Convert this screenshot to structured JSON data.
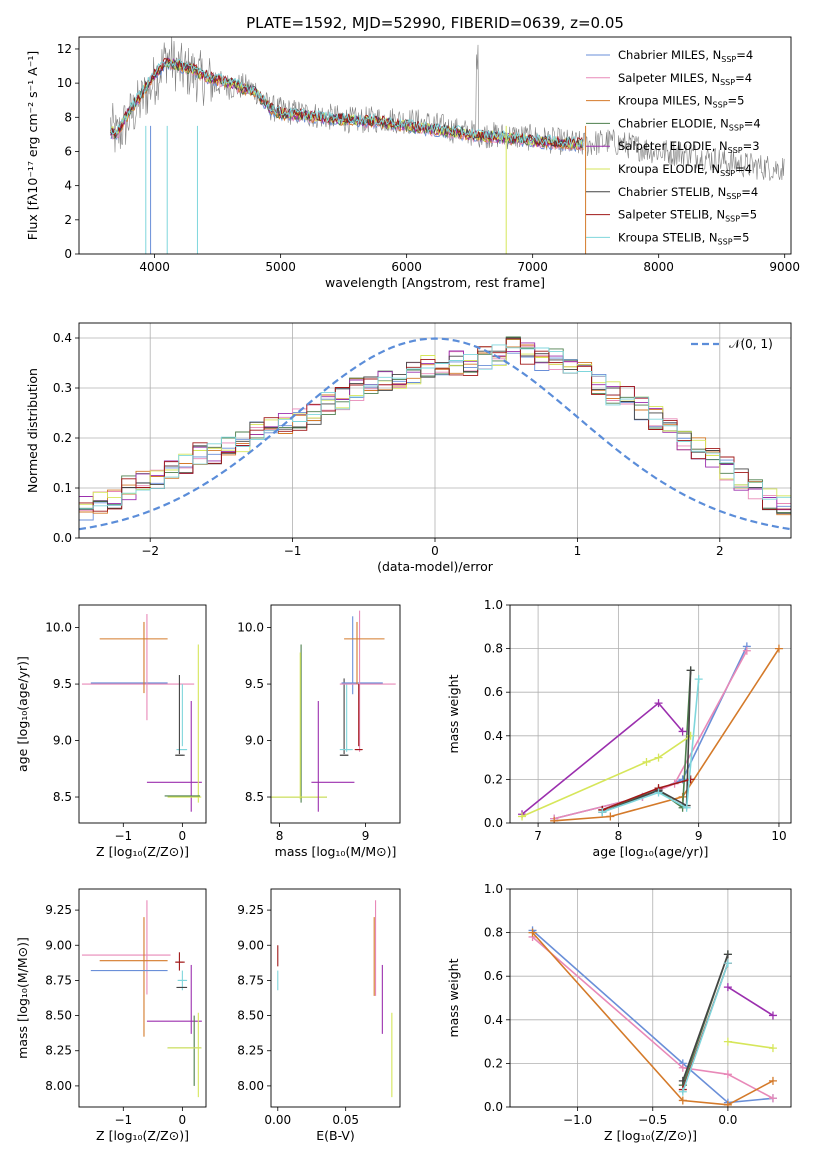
{
  "figure_title": "PLATE=1592, MJD=52990, FIBERID=0639, z=0.05",
  "colors": {
    "data": "#808080",
    "series": [
      "#6a8fd8",
      "#e889b8",
      "#d47a2a",
      "#4d7f4d",
      "#9b2fae",
      "#d6e65a",
      "#444444",
      "#a01818",
      "#7fd6dc"
    ],
    "normal": "#5b8dd9"
  },
  "models": [
    {
      "name": "Chabrier MILES",
      "n_ssp": "4"
    },
    {
      "name": "Salpeter MILES",
      "n_ssp": "4"
    },
    {
      "name": "Kroupa MILES",
      "n_ssp": "5"
    },
    {
      "name": "Chabrier ELODIE",
      "n_ssp": "4"
    },
    {
      "name": "Salpeter ELODIE",
      "n_ssp": "3"
    },
    {
      "name": "Kroupa ELODIE",
      "n_ssp": "4"
    },
    {
      "name": "Chabrier STELIB",
      "n_ssp": "4"
    },
    {
      "name": "Salpeter STELIB",
      "n_ssp": "5"
    },
    {
      "name": "Kroupa STELIB",
      "n_ssp": "5"
    }
  ],
  "legend_nssp_label": "N",
  "legend_nssp_sub": "SSP",
  "chart_data": [
    {
      "id": "spectrum",
      "type": "line",
      "title": "",
      "xlabel": "wavelength [Angstrom, rest frame]",
      "ylabel": "Flux [fλ10⁻¹⁷ erg cm⁻² s⁻¹ A⁻¹]",
      "xlim": [
        3400,
        9050
      ],
      "ylim": [
        0,
        12.7
      ],
      "xticks": [
        4000,
        5000,
        6000,
        7000,
        8000,
        9000
      ],
      "yticks": [
        0,
        2,
        4,
        6,
        8,
        10,
        12
      ],
      "legend": "top-right",
      "grid": false,
      "data_series": {
        "name": "data",
        "x": [
          3650,
          3700,
          3800,
          3900,
          4000,
          4100,
          4200,
          4300,
          4400,
          4500,
          4600,
          4700,
          4800,
          4900,
          5000,
          5200,
          5400,
          5600,
          5800,
          6000,
          6200,
          6400,
          6600,
          6800,
          7000,
          7200,
          7400,
          7600,
          7800,
          8000,
          8200,
          8400,
          8600,
          8800,
          9000
        ],
        "y": [
          7.5,
          6.8,
          8.0,
          9.0,
          10.2,
          11.6,
          10.8,
          10.6,
          10.2,
          10.0,
          9.8,
          9.8,
          9.6,
          8.6,
          8.4,
          8.2,
          8.0,
          7.8,
          7.9,
          7.8,
          7.6,
          7.2,
          7.0,
          6.9,
          6.8,
          6.6,
          6.4,
          6.6,
          6.3,
          6.0,
          5.9,
          5.6,
          5.3,
          5.1,
          5.0
        ]
      },
      "model_continuum": {
        "x": [
          3650,
          3700,
          3800,
          3900,
          4000,
          4100,
          4200,
          4300,
          4400,
          4500,
          4600,
          4700,
          4800,
          4900,
          5000,
          5200,
          5400,
          5600,
          5800,
          6000,
          6200,
          6400,
          6600,
          6800,
          7000,
          7200,
          7400
        ],
        "y": [
          7.2,
          7.0,
          8.4,
          9.4,
          10.5,
          11.2,
          11.0,
          10.8,
          10.4,
          10.2,
          10.0,
          9.7,
          9.5,
          8.6,
          8.2,
          8.1,
          7.9,
          7.8,
          7.7,
          7.5,
          7.3,
          7.1,
          6.9,
          6.8,
          6.6,
          6.5,
          6.4
        ]
      }
    },
    {
      "id": "residuals",
      "type": "line",
      "title": "",
      "xlabel": "(data-model)/error",
      "ylabel": "Normed distribution",
      "xlim": [
        -2.5,
        2.5
      ],
      "ylim": [
        0,
        0.43
      ],
      "xticks": [
        -2,
        -1,
        0,
        1,
        2
      ],
      "yticks": [
        0.0,
        0.1,
        0.2,
        0.3,
        0.4
      ],
      "legend": "top-right",
      "grid": true,
      "normal_label": "𝒩(0, 1)",
      "bin_edges_start": -2.5,
      "bin_width": 0.1,
      "hist_base": [
        0.06,
        0.07,
        0.08,
        0.1,
        0.11,
        0.12,
        0.14,
        0.15,
        0.17,
        0.17,
        0.18,
        0.19,
        0.21,
        0.22,
        0.23,
        0.24,
        0.25,
        0.27,
        0.28,
        0.3,
        0.3,
        0.31,
        0.32,
        0.33,
        0.34,
        0.34,
        0.35,
        0.35,
        0.36,
        0.37,
        0.38,
        0.37,
        0.36,
        0.36,
        0.34,
        0.33,
        0.31,
        0.29,
        0.28,
        0.26,
        0.24,
        0.22,
        0.2,
        0.18,
        0.16,
        0.14,
        0.12,
        0.1,
        0.08,
        0.06
      ]
    },
    {
      "id": "age_vs_Z",
      "type": "scatter",
      "title": "",
      "xlabel": "Z [log₁₀(Z/Z⊙)]",
      "ylabel": "age  [log₁₀(age/yr)]",
      "xlim": [
        -1.75,
        0.4
      ],
      "ylim": [
        8.27,
        10.2
      ],
      "xticks": [
        -1,
        0
      ],
      "yticks": [
        8.5,
        9.0,
        9.5,
        10.0
      ],
      "grid": false
    },
    {
      "id": "age_vs_mass",
      "type": "scatter",
      "title": "",
      "xlabel": "mass [log₁₀(M/M⊙)]",
      "ylabel": "",
      "xlim": [
        7.9,
        9.4
      ],
      "ylim": [
        8.27,
        10.2
      ],
      "xticks": [
        8,
        9
      ],
      "yticks": [
        8.5,
        9.0,
        9.5,
        10.0
      ],
      "grid": false
    },
    {
      "id": "mass_weight_vs_age",
      "type": "line",
      "title": "",
      "xlabel": "age  [log₁₀(age/yr)]",
      "ylabel": "mass weight",
      "xlim": [
        6.65,
        10.15
      ],
      "ylim": [
        0,
        1.0
      ],
      "xticks": [
        7,
        8,
        9,
        10
      ],
      "yticks": [
        0.0,
        0.2,
        0.4,
        0.6,
        0.8,
        1.0
      ],
      "grid": true,
      "series": [
        {
          "x": [
            7.2,
            8.3,
            8.8,
            9.6
          ],
          "y": [
            0.02,
            0.12,
            0.2,
            0.81
          ]
        },
        {
          "x": [
            7.2,
            8.3,
            8.7,
            9.6
          ],
          "y": [
            0.02,
            0.12,
            0.18,
            0.79
          ]
        },
        {
          "x": [
            7.2,
            7.9,
            8.8,
            10.0
          ],
          "y": [
            0.01,
            0.03,
            0.12,
            0.8
          ]
        },
        {
          "x": [
            7.8,
            8.5,
            8.8,
            8.9
          ],
          "y": [
            0.06,
            0.15,
            0.07,
            0.7
          ]
        },
        {
          "x": [
            6.8,
            8.5,
            8.8
          ],
          "y": [
            0.04,
            0.55,
            0.42
          ]
        },
        {
          "x": [
            6.8,
            8.35,
            8.5,
            8.9
          ],
          "y": [
            0.03,
            0.28,
            0.3,
            0.4
          ]
        },
        {
          "x": [
            7.8,
            8.5,
            8.85,
            8.9
          ],
          "y": [
            0.05,
            0.15,
            0.08,
            0.7
          ]
        },
        {
          "x": [
            7.8,
            8.5,
            8.9
          ],
          "y": [
            0.06,
            0.16,
            0.2
          ]
        },
        {
          "x": [
            7.8,
            8.5,
            8.85,
            9.0
          ],
          "y": [
            0.05,
            0.14,
            0.07,
            0.66
          ]
        }
      ]
    },
    {
      "id": "mass_vs_Z",
      "type": "scatter",
      "title": "",
      "xlabel": "Z [log₁₀(Z/Z⊙)]",
      "ylabel": "mass [log₁₀(M/M⊙)]",
      "xlim": [
        -1.75,
        0.4
      ],
      "ylim": [
        7.85,
        9.4
      ],
      "xticks": [
        -1,
        0
      ],
      "yticks": [
        8.0,
        8.25,
        8.5,
        8.75,
        9.0,
        9.25
      ],
      "grid": false
    },
    {
      "id": "mass_vs_ebv",
      "type": "scatter",
      "title": "",
      "xlabel": "E(B-V)",
      "ylabel": "",
      "xlim": [
        -0.005,
        0.09
      ],
      "ylim": [
        7.85,
        9.4
      ],
      "xticks": [
        0.0,
        0.05
      ],
      "yticks": [
        8.0,
        8.25,
        8.5,
        8.75,
        9.0,
        9.25
      ],
      "grid": false
    },
    {
      "id": "mass_weight_vs_Z",
      "type": "line",
      "title": "",
      "xlabel": "Z [log₁₀(Z/Z⊙)]",
      "ylabel": "mass weight",
      "xlim": [
        -1.45,
        0.42
      ],
      "ylim": [
        0,
        1.0
      ],
      "xticks": [
        -1.0,
        -0.5,
        0.0
      ],
      "yticks": [
        0.0,
        0.2,
        0.4,
        0.6,
        0.8,
        1.0
      ],
      "grid": true,
      "series": [
        {
          "x": [
            -1.3,
            -0.3,
            0.0,
            0.3
          ],
          "y": [
            0.81,
            0.2,
            0.02,
            0.04
          ]
        },
        {
          "x": [
            -1.3,
            -0.3,
            0.0,
            0.3
          ],
          "y": [
            0.78,
            0.18,
            0.15,
            0.04
          ]
        },
        {
          "x": [
            -1.3,
            -0.3,
            0.0,
            0.3
          ],
          "y": [
            0.8,
            0.03,
            0.01,
            0.12
          ]
        },
        {
          "x": [
            -0.3,
            0.0
          ],
          "y": [
            0.1,
            0.7
          ]
        },
        {
          "x": [
            0.0,
            0.3
          ],
          "y": [
            0.55,
            0.42
          ]
        },
        {
          "x": [
            0.0,
            0.3
          ],
          "y": [
            0.3,
            0.27
          ]
        },
        {
          "x": [
            -0.3,
            0.0
          ],
          "y": [
            0.12,
            0.7
          ]
        },
        {
          "x": [
            -0.3,
            0.0
          ],
          "y": [
            0.08,
            0.66
          ]
        },
        {
          "x": [
            -0.3,
            0.0
          ],
          "y": [
            0.07,
            0.66
          ]
        }
      ]
    }
  ]
}
